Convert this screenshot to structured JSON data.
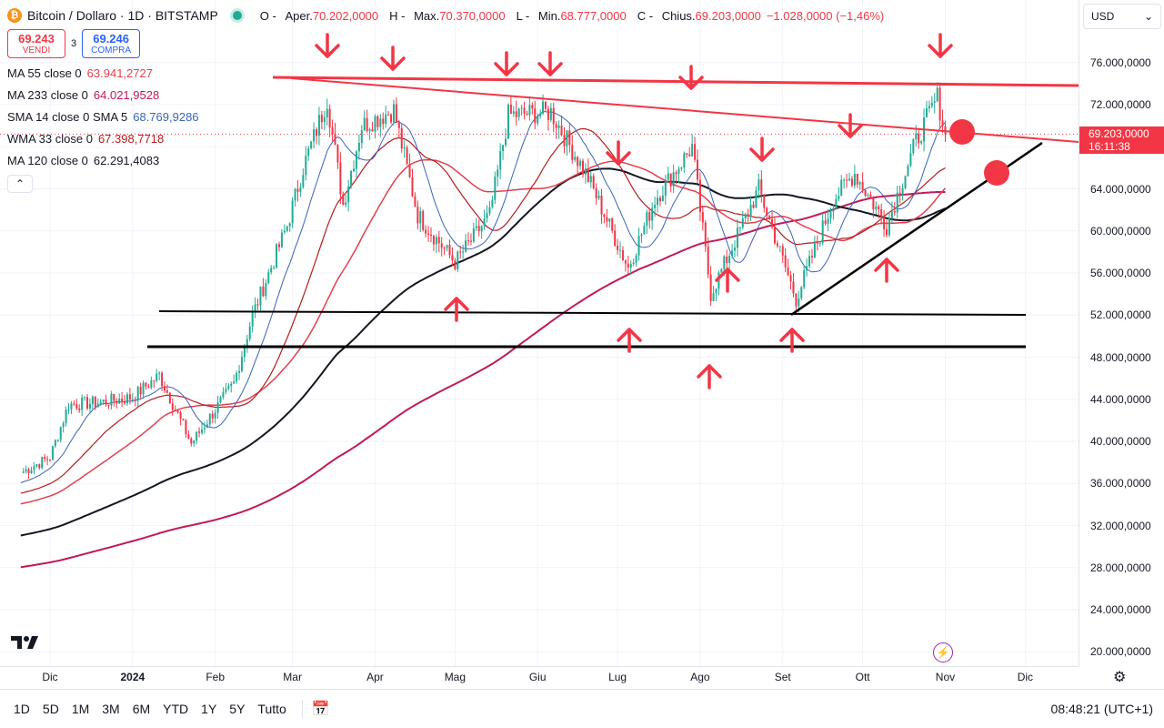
{
  "header": {
    "symbol_title": "Bitcoin / Dollaro · 1D · BITSTAMP",
    "ohlc": [
      {
        "key": "O",
        "label": "Aper.",
        "value": "70.202,0000"
      },
      {
        "key": "H",
        "label": "Max.",
        "value": "70.370,0000"
      },
      {
        "key": "L",
        "label": "Min.",
        "value": "68.777,0000"
      },
      {
        "key": "C",
        "label": "Chius.",
        "value": "69.203,0000"
      }
    ],
    "change": "−1.028,0000 (−1,46%)"
  },
  "trade": {
    "sell_price": "69.243",
    "sell_label": "VENDI",
    "spread": "3",
    "buy_price": "69.246",
    "buy_label": "COMPRA"
  },
  "indicators": [
    {
      "name": "MA 55 close 0",
      "value": "63.941,2727",
      "color": "#e4404f"
    },
    {
      "name": "MA 233 close 0",
      "value": "64.021,9528",
      "color": "#c2185b"
    },
    {
      "name": "SMA 14 close 0 SMA 5",
      "value": "68.769,9286",
      "color": "#3a64b8"
    },
    {
      "name": "WMA 33 close 0",
      "value": "67.398,7718",
      "color": "#b71c1c"
    },
    {
      "name": "MA 120 close 0",
      "value": "62.291,4083",
      "color": "#131722"
    }
  ],
  "collapse_label": "⌃",
  "currency": "USD",
  "current_price_tag": {
    "price": "69.203,0000",
    "countdown": "16:11:38"
  },
  "price_axis": [
    "76.000,0000",
    "72.000,0000",
    "68.000,0000",
    "64.000,0000",
    "60.000,0000",
    "56.000,0000",
    "52.000,0000",
    "48.000,0000",
    "44.000,0000",
    "40.000,0000",
    "36.000,0000",
    "32.000,0000",
    "28.000,0000",
    "24.000,0000",
    "20.000,0000"
  ],
  "time_axis": [
    "Dic",
    "2024",
    "Feb",
    "Mar",
    "Apr",
    "Mag",
    "Giu",
    "Lug",
    "Ago",
    "Set",
    "Ott",
    "Nov",
    "Dic"
  ],
  "timeframes": [
    "1D",
    "5D",
    "1M",
    "3M",
    "6M",
    "YTD",
    "1Y",
    "5Y",
    "Tutto"
  ],
  "clock": "08:48:21 (UTC+1)",
  "colors": {
    "up": "#22ab94",
    "down": "#f23645",
    "annotation": "#f23645",
    "ma120": "#131722",
    "ma233": "#c2185b",
    "ma55": "#e4404f",
    "sma": "#3a64b8",
    "wma": "#b71c1c"
  },
  "chart_data": {
    "type": "candlestick",
    "ylim": [
      20000,
      78000
    ],
    "x_range": [
      "2023-11-18",
      "2024-12-30"
    ],
    "support_levels": [
      52000,
      49000
    ],
    "resistance_levels": [
      74000
    ],
    "current_price": 69203,
    "close_series": [
      {
        "date": "2023-11-20",
        "close": 37000
      },
      {
        "date": "2023-12-01",
        "close": 38500
      },
      {
        "date": "2023-12-08",
        "close": 43500
      },
      {
        "date": "2023-12-20",
        "close": 43700
      },
      {
        "date": "2024-01-01",
        "close": 44200
      },
      {
        "date": "2024-01-11",
        "close": 46300
      },
      {
        "date": "2024-01-23",
        "close": 39800
      },
      {
        "date": "2024-02-08",
        "close": 45500
      },
      {
        "date": "2024-02-15",
        "close": 52000
      },
      {
        "date": "2024-02-28",
        "close": 60500
      },
      {
        "date": "2024-03-05",
        "close": 66000
      },
      {
        "date": "2024-03-14",
        "close": 72500
      },
      {
        "date": "2024-03-20",
        "close": 62500
      },
      {
        "date": "2024-03-27",
        "close": 70000
      },
      {
        "date": "2024-04-08",
        "close": 71500
      },
      {
        "date": "2024-04-17",
        "close": 61500
      },
      {
        "date": "2024-05-01",
        "close": 57000
      },
      {
        "date": "2024-05-14",
        "close": 61500
      },
      {
        "date": "2024-05-21",
        "close": 71000
      },
      {
        "date": "2024-06-06",
        "close": 71300
      },
      {
        "date": "2024-06-20",
        "close": 65000
      },
      {
        "date": "2024-07-05",
        "close": 56500
      },
      {
        "date": "2024-07-15",
        "close": 63000
      },
      {
        "date": "2024-07-29",
        "close": 68000
      },
      {
        "date": "2024-08-05",
        "close": 54000
      },
      {
        "date": "2024-08-23",
        "close": 64000
      },
      {
        "date": "2024-09-06",
        "close": 53500
      },
      {
        "date": "2024-09-20",
        "close": 63000
      },
      {
        "date": "2024-09-28",
        "close": 65500
      },
      {
        "date": "2024-10-10",
        "close": 60500
      },
      {
        "date": "2024-10-21",
        "close": 68500
      },
      {
        "date": "2024-10-29",
        "close": 72700
      },
      {
        "date": "2024-11-01",
        "close": 69203
      }
    ]
  }
}
